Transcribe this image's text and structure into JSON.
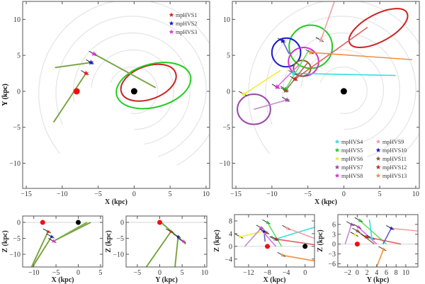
{
  "chart_data": [
    {
      "id": "xy-main",
      "type": "scatter",
      "title": "",
      "xlabel": "X (kpc)",
      "ylabel": "Y (kpc)",
      "xlim": [
        -15.5,
        10.5
      ],
      "ylim": [
        -13.5,
        12.5
      ],
      "xticks": [
        -15,
        -10,
        -5,
        0,
        5,
        10
      ],
      "yticks": [
        -10,
        -5,
        0,
        5,
        10
      ],
      "legend": {
        "position": "top-right",
        "entries": [
          {
            "name": "mpHVS1",
            "color": "#e02020"
          },
          {
            "name": "mpHVS2",
            "color": "#1a1acc"
          },
          {
            "name": "mpHVS3",
            "color": "#e030e0"
          }
        ]
      },
      "sun": {
        "x": -8,
        "y": 0,
        "color": "#ee1111"
      },
      "galactic_center": {
        "x": 0,
        "y": 0,
        "color": "#000000"
      },
      "stars": [
        {
          "name": "mpHVS1",
          "x": -6.7,
          "y": 2.5,
          "color": "#e02020"
        },
        {
          "name": "mpHVS2",
          "x": -6.0,
          "y": 4.0,
          "color": "#1a1acc"
        },
        {
          "name": "mpHVS3",
          "x": -5.6,
          "y": 5.2,
          "color": "#e030e0"
        }
      ],
      "tracks": [
        {
          "from": [
            -11.2,
            -4.3
          ],
          "to": [
            -6.7,
            2.5
          ]
        },
        {
          "from": [
            -11.0,
            3.3
          ],
          "to": [
            -6.0,
            4.0
          ]
        },
        {
          "from": [
            -5.6,
            5.2
          ],
          "to": [
            3.0,
            0.5
          ]
        }
      ],
      "orbits": [
        {
          "cx": 2.0,
          "cy": 1.2,
          "rx": 4.0,
          "ry": 2.3,
          "angle": -20,
          "color": "#cc2222"
        },
        {
          "cx": 2.7,
          "cy": 0.8,
          "rx": 5.3,
          "ry": 3.0,
          "angle": -15,
          "color": "#22cc22"
        }
      ]
    },
    {
      "id": "xy-right",
      "type": "scatter",
      "title": "",
      "xlabel": "X (kpc)",
      "ylabel": "Y (kpc)",
      "xlim": [
        -15.5,
        10.5
      ],
      "ylim": [
        -13.5,
        12.5
      ],
      "xticks": [
        -15,
        -10,
        -5,
        0,
        5,
        10
      ],
      "yticks": [
        -10,
        -5,
        0,
        5,
        10
      ],
      "legend": {
        "position": "bottom-right",
        "entries": [
          {
            "name": "mpHVS4",
            "color": "#33e0e0"
          },
          {
            "name": "mpHVS5",
            "color": "#22cc22"
          },
          {
            "name": "mpHVS6",
            "color": "#eeee33"
          },
          {
            "name": "mpHVS7",
            "color": "#9a4aa8"
          },
          {
            "name": "mpHVS8",
            "color": "#e030e0"
          },
          {
            "name": "mpHVS9",
            "color": "#f0a0a0"
          },
          {
            "name": "mpHVS10",
            "color": "#1a1acc"
          },
          {
            "name": "mpHVS11",
            "color": "#8a5a30"
          },
          {
            "name": "mpHVS12",
            "color": "#dd2020"
          },
          {
            "name": "mpHVS13",
            "color": "#f09040"
          }
        ]
      },
      "galactic_center": {
        "x": 0,
        "y": 0,
        "color": "#000000"
      },
      "stars": [
        {
          "name": "mpHVS4",
          "x": -7.0,
          "y": 2.5,
          "color": "#33e0e0"
        },
        {
          "name": "mpHVS5",
          "x": -8.1,
          "y": 0.3,
          "color": "#22cc22"
        },
        {
          "name": "mpHVS6",
          "x": -13.9,
          "y": -0.4,
          "color": "#eeee33"
        },
        {
          "name": "mpHVS7",
          "x": -7.9,
          "y": -1.2,
          "color": "#9a4aa8"
        },
        {
          "name": "mpHVS8",
          "x": -9.3,
          "y": 0.6,
          "color": "#e030e0"
        },
        {
          "name": "mpHVS9",
          "x": -3.2,
          "y": 7.1,
          "color": "#f0a0a0"
        },
        {
          "name": "mpHVS10",
          "x": -8.5,
          "y": 7.0,
          "color": "#1a1acc"
        },
        {
          "name": "mpHVS11",
          "x": -8.1,
          "y": 0.1,
          "color": "#8a5a30"
        },
        {
          "name": "mpHVS12",
          "x": -6.8,
          "y": 1.7,
          "color": "#dd2020"
        },
        {
          "name": "mpHVS13",
          "x": -4.6,
          "y": 5.4,
          "color": "#f09040"
        }
      ],
      "tracks": [
        {
          "from": [
            -7.0,
            2.5
          ],
          "to": [
            7.2,
            2.2
          ],
          "color": "#33e0e0",
          "curved": true
        },
        {
          "from": [
            -13.9,
            -0.4
          ],
          "to": [
            -8.8,
            2.9
          ],
          "color": "#eeee33"
        },
        {
          "from": [
            -12.5,
            -2.5
          ],
          "to": [
            -7.9,
            -1.2
          ],
          "color": "#c090c8"
        },
        {
          "from": [
            -9.3,
            0.6
          ],
          "to": [
            -6.3,
            3.6
          ],
          "color": "#e070e0"
        },
        {
          "from": [
            -3.2,
            7.1
          ],
          "to": [
            -1.3,
            12.5
          ],
          "color": "#f0a0a0"
        },
        {
          "from": [
            -8.5,
            7.0
          ],
          "to": [
            -7.6,
            5.2
          ],
          "color": "#6060cc"
        },
        {
          "from": [
            -6.8,
            1.7
          ],
          "to": [
            3.3,
            8.9
          ],
          "color": "#e06060"
        },
        {
          "from": [
            -4.6,
            5.4
          ],
          "to": [
            9.5,
            4.4
          ],
          "color": "#f09040",
          "curved": true
        },
        {
          "from": [
            -8.1,
            0.1
          ],
          "to": [
            -5.0,
            4.0
          ],
          "color": "#a07050"
        },
        {
          "from": [
            -8.1,
            0.3
          ],
          "to": [
            -4.8,
            5.8
          ],
          "color": "#66dd66"
        }
      ],
      "orbits": [
        {
          "cx": 4.8,
          "cy": 8.8,
          "rx": 4.5,
          "ry": 1.9,
          "angle": -28,
          "color": "#cc2222"
        },
        {
          "cx": -4.6,
          "cy": 6.2,
          "rx": 3.0,
          "ry": 3.0,
          "angle": 0,
          "color": "#22cc22"
        },
        {
          "cx": -8.0,
          "cy": 5.4,
          "rx": 2.0,
          "ry": 2.0,
          "angle": 0,
          "color": "#1a1acc"
        },
        {
          "cx": -5.6,
          "cy": 4.1,
          "rx": 2.1,
          "ry": 2.0,
          "angle": 0,
          "color": "#d030d0"
        },
        {
          "cx": -5.8,
          "cy": 3.2,
          "rx": 1.2,
          "ry": 1.1,
          "angle": 0,
          "color": "#8a5a30"
        },
        {
          "cx": -12.5,
          "cy": -2.5,
          "rx": 2.3,
          "ry": 2.1,
          "angle": 0,
          "color": "#9a4aa8"
        }
      ]
    },
    {
      "id": "xz-left",
      "type": "scatter",
      "xlabel": "X (kpc)",
      "ylabel": "Z (kpc)",
      "xlim": [
        -12.5,
        5.5
      ],
      "ylim": [
        -14,
        2
      ],
      "xticks": [
        -10,
        -5,
        0,
        5
      ],
      "yticks": [
        0,
        -5,
        -10
      ],
      "sun": {
        "x": -8,
        "y": 0
      },
      "galactic_center": {
        "x": 0,
        "y": 0
      },
      "stars": [
        {
          "name": "mpHVS1",
          "x": -6.8,
          "y": -2.9,
          "color": "#e02020"
        },
        {
          "name": "mpHVS2",
          "x": -6.0,
          "y": -4.5,
          "color": "#1a1acc"
        },
        {
          "name": "mpHVS3",
          "x": -5.6,
          "y": -5.9,
          "color": "#e030e0"
        }
      ],
      "tracks": [
        {
          "from": [
            -10.5,
            -14
          ],
          "to": [
            -6.8,
            -2.9
          ]
        },
        {
          "from": [
            -10.3,
            -14
          ],
          "to": [
            -6.0,
            -4.5
          ]
        },
        {
          "from": [
            -5.6,
            -5.9
          ],
          "to": [
            2.0,
            0
          ]
        },
        {
          "from": [
            -5.6,
            -5.9
          ],
          "to": [
            2.8,
            0
          ]
        }
      ]
    },
    {
      "id": "yz-left",
      "type": "scatter",
      "xlabel": "Y (kpc)",
      "ylabel": "Z (kpc)",
      "xlim": [
        -7.5,
        10.5
      ],
      "ylim": [
        -14,
        2
      ],
      "xticks": [
        -5,
        0,
        5,
        10
      ],
      "yticks": [
        0,
        -5,
        -10
      ],
      "sun": {
        "x": 0,
        "y": 0
      },
      "stars": [
        {
          "name": "mpHVS1",
          "x": 2.5,
          "y": -2.9,
          "color": "#e02020"
        },
        {
          "name": "mpHVS2",
          "x": 4.1,
          "y": -4.5,
          "color": "#1a1acc"
        },
        {
          "name": "mpHVS3",
          "x": 5.2,
          "y": -5.9,
          "color": "#e030e0"
        }
      ],
      "tracks": [
        {
          "from": [
            -3.0,
            -14
          ],
          "to": [
            2.5,
            -2.9
          ]
        },
        {
          "from": [
            3.4,
            -14
          ],
          "to": [
            4.1,
            -4.5
          ]
        },
        {
          "from": [
            0.3,
            0
          ],
          "to": [
            5.8,
            -6.8
          ]
        }
      ]
    },
    {
      "id": "xz-right",
      "type": "scatter",
      "xlabel": "X (kpc)",
      "ylabel": "Z (kpc)",
      "xlim": [
        -15,
        2
      ],
      "ylim": [
        -6.5,
        10
      ],
      "xticks": [
        -12,
        -8,
        -4,
        0
      ],
      "yticks": [
        8,
        4,
        0,
        -4
      ],
      "sun": {
        "x": -8,
        "y": 0
      },
      "galactic_center": {
        "x": 0,
        "y": 0
      },
      "stars": [
        {
          "name": "mpHVS4",
          "x": -6.5,
          "y": 2.2,
          "color": "#33e0e0"
        },
        {
          "name": "mpHVS5",
          "x": -8.0,
          "y": 7.5,
          "color": "#22cc22"
        },
        {
          "name": "mpHVS6",
          "x": -13.8,
          "y": 3.0,
          "color": "#eeee33"
        },
        {
          "name": "mpHVS8",
          "x": -9.3,
          "y": 5.8,
          "color": "#e030e0"
        },
        {
          "name": "mpHVS10",
          "x": -8.7,
          "y": 4.7,
          "color": "#1a1acc"
        },
        {
          "name": "mpHVS11",
          "x": -8.2,
          "y": 4.3,
          "color": "#8a5a30"
        },
        {
          "name": "mpHVS12",
          "x": -6.2,
          "y": 2.3,
          "color": "#dd2020"
        },
        {
          "name": "mpHVS9",
          "x": -3.8,
          "y": 5.7,
          "color": "#f0a0a0"
        },
        {
          "name": "mpHVS13",
          "x": -4.8,
          "y": -2.8,
          "color": "#f09040"
        }
      ],
      "tracks": [
        {
          "from": [
            -6.5,
            2.2
          ],
          "to": [
            2,
            6
          ],
          "color": "#33e0e0"
        },
        {
          "from": [
            -13.8,
            3.0
          ],
          "to": [
            -9.0,
            4.7
          ],
          "color": "#eeee33"
        },
        {
          "from": [
            -12.8,
            0
          ],
          "to": [
            -9.3,
            5.8
          ],
          "color": "#c090c8"
        },
        {
          "from": [
            -8.0,
            7.5
          ],
          "to": [
            -5.0,
            0
          ],
          "color": "#66dd66"
        },
        {
          "from": [
            -8.7,
            4.7
          ],
          "to": [
            -8.5,
            1.5
          ],
          "color": "#6060cc"
        },
        {
          "from": [
            -6.2,
            2.3
          ],
          "to": [
            2,
            0.5
          ],
          "color": "#e06060"
        },
        {
          "from": [
            -3.8,
            5.7
          ],
          "to": [
            2,
            2.5
          ],
          "color": "#f0a0a0"
        },
        {
          "from": [
            -4.8,
            -2.8
          ],
          "to": [
            2,
            -4.6
          ],
          "color": "#f09040"
        },
        {
          "from": [
            -9.5,
            5.5
          ],
          "to": [
            -6.2,
            0
          ],
          "color": "#e070e0"
        }
      ]
    },
    {
      "id": "yz-right",
      "type": "scatter",
      "xlabel": "Y (kpc)",
      "ylabel": "Z (kpc)",
      "xlim": [
        -4,
        12.5
      ],
      "ylim": [
        -7,
        9
      ],
      "xticks": [
        -2,
        0,
        2,
        4,
        6,
        8,
        10
      ],
      "yticks": [
        6,
        3,
        0,
        -3,
        -6
      ],
      "sun": {
        "x": 0,
        "y": 0
      },
      "stars": [
        {
          "name": "mpHVS5",
          "x": 0.5,
          "y": 7.2,
          "color": "#22cc22"
        },
        {
          "name": "mpHVS8",
          "x": 0.2,
          "y": 5.2,
          "color": "#e030e0"
        },
        {
          "name": "mpHVS11",
          "x": 0.0,
          "y": 4.0,
          "color": "#8a5a30"
        },
        {
          "name": "mpHVS6",
          "x": -0.4,
          "y": 2.8,
          "color": "#eeee33"
        },
        {
          "name": "mpHVS12",
          "x": 1.8,
          "y": 2.2,
          "color": "#dd2020"
        },
        {
          "name": "mpHVS4",
          "x": 3.0,
          "y": 1.8,
          "color": "#33e0e0"
        },
        {
          "name": "mpHVS10",
          "x": 7.0,
          "y": 4.8,
          "color": "#1a1acc"
        },
        {
          "name": "mpHVS7",
          "x": -1.2,
          "y": 6.0,
          "color": "#9a4aa8"
        },
        {
          "name": "mpHVS13",
          "x": 5.4,
          "y": -1.6,
          "color": "#f09040"
        }
      ],
      "tracks": [
        {
          "from": [
            0.5,
            7.2
          ],
          "to": [
            6,
            0
          ],
          "color": "#66dd66"
        },
        {
          "from": [
            0.2,
            5.2
          ],
          "to": [
            4,
            0
          ],
          "color": "#e070e0"
        },
        {
          "from": [
            -1.2,
            6.0
          ],
          "to": [
            -2.5,
            0
          ],
          "color": "#c090c8"
        },
        {
          "from": [
            1.8,
            2.2
          ],
          "to": [
            9,
            0
          ],
          "color": "#e06060"
        },
        {
          "from": [
            7.0,
            4.8
          ],
          "to": [
            5.3,
            0
          ],
          "color": "#6060cc"
        },
        {
          "from": [
            7.0,
            4.8
          ],
          "to": [
            12.5,
            4.0
          ],
          "color": "#f0a0a0"
        },
        {
          "from": [
            2.5,
            7.5
          ],
          "to": [
            3.0,
            1.8
          ],
          "color": "#33e0e0"
        },
        {
          "from": [
            5.4,
            -1.6
          ],
          "to": [
            4.0,
            -7
          ],
          "color": "#f09040"
        },
        {
          "from": [
            0.0,
            4.0
          ],
          "to": [
            3.5,
            0
          ],
          "color": "#a07050"
        }
      ]
    }
  ]
}
